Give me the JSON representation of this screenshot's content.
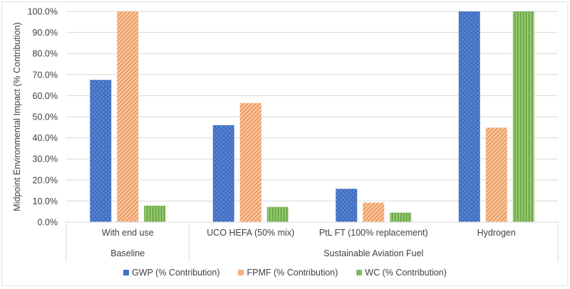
{
  "chart_data": {
    "type": "bar",
    "title": "",
    "xlabel": "",
    "ylabel": "Midpoint Environmental Impact (% Contribution)",
    "ylim": [
      0,
      100
    ],
    "ytick_step": 10,
    "ytick_labels": [
      "0.0%",
      "10.0%",
      "20.0%",
      "30.0%",
      "40.0%",
      "50.0%",
      "60.0%",
      "70.0%",
      "80.0%",
      "90.0%",
      "100.0%"
    ],
    "grid": true,
    "legend_position": "bottom",
    "categories": [
      "With end use",
      "UCO HEFA (50% mix)",
      "PtL FT (100% replacement)",
      "Hydrogen"
    ],
    "category_groups": [
      {
        "label": "Baseline",
        "span": 1
      },
      {
        "label": "Sustainable Aviation Fuel",
        "span": 3
      }
    ],
    "series": [
      {
        "name": "GWP (% Contribution)",
        "color": "#4472c4",
        "pattern": "dots",
        "values": [
          67.5,
          46.0,
          15.8,
          100.0
        ]
      },
      {
        "name": "FPMF (% Contribution)",
        "color": "#f4b183",
        "pattern": "diagonal",
        "values": [
          100.0,
          56.5,
          9.2,
          44.8
        ]
      },
      {
        "name": "WC (% Contribution)",
        "color": "#70ad47",
        "pattern": "vertical",
        "values": [
          7.8,
          7.2,
          4.5,
          100.0
        ]
      }
    ]
  }
}
